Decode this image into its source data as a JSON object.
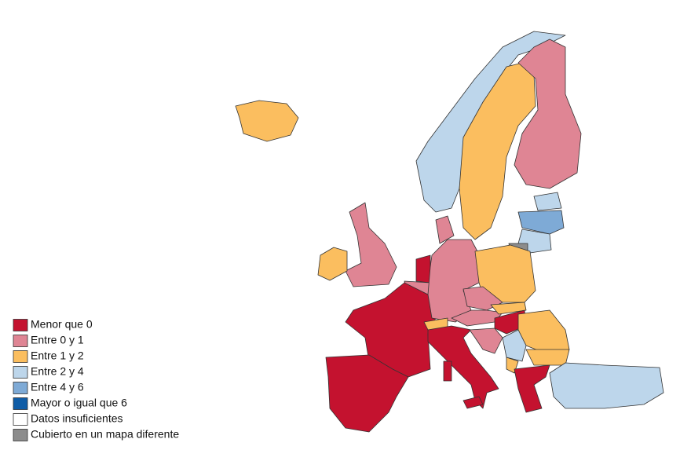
{
  "legend": [
    {
      "label": "Menor que 0",
      "color": "#c4122f"
    },
    {
      "label": "Entre 0 y 1",
      "color": "#df8594"
    },
    {
      "label": "Entre 1 y 2",
      "color": "#fbbe5f"
    },
    {
      "label": "Entre 2 y 4",
      "color": "#bdd6eb"
    },
    {
      "label": "Entre 4 y 6",
      "color": "#7eaad6"
    },
    {
      "label": "Mayor o igual que 6",
      "color": "#0f5ca6"
    },
    {
      "label": "Datos insuficientes",
      "color": "#ffffff"
    },
    {
      "label": "Cubierto en un mapa diferente",
      "color": "#8c8c8c"
    }
  ]
}
